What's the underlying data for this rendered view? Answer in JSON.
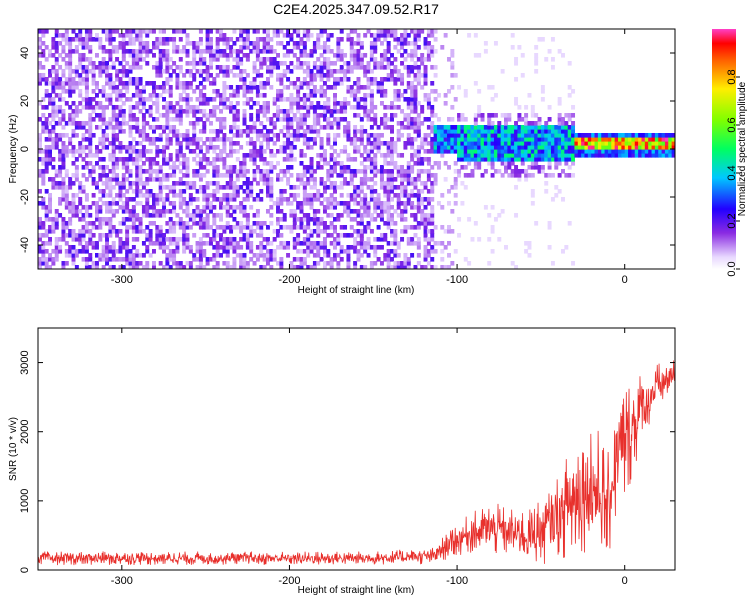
{
  "title": "C2E4.2025.347.09.52.R17",
  "chart_data": [
    {
      "type": "heatmap",
      "name": "spectrogram",
      "xlabel": "Height of straight line (km)",
      "ylabel": "Frequency (Hz)",
      "xlim": [
        -350,
        30
      ],
      "ylim": [
        -50,
        50
      ],
      "xticks": [
        -300,
        -200,
        -100,
        0
      ],
      "yticks": [
        -40,
        -20,
        0,
        20,
        40
      ],
      "description_regions": [
        {
          "x_range": [
            -350,
            -115
          ],
          "freq_range": [
            -50,
            50
          ],
          "amplitude": "low (0.05-0.2), scattered noise"
        },
        {
          "x_range": [
            -115,
            -30
          ],
          "freq_range": [
            -5,
            10
          ],
          "amplitude": "medium (0.3-0.5)"
        },
        {
          "x_range": [
            -30,
            30
          ],
          "freq_range": [
            -2,
            4
          ],
          "amplitude": "high (0.6-1.0), carrier near 0-2 Hz"
        }
      ],
      "colorbar": {
        "label": "Normalized spectral amplitude",
        "range": [
          0,
          1
        ],
        "ticks": [
          "0.0",
          "0.2",
          "0.4",
          "0.6",
          "0.8"
        ],
        "tick_values": [
          0.0,
          0.2,
          0.4,
          0.6,
          0.8
        ]
      }
    },
    {
      "type": "line",
      "name": "snr",
      "xlabel": "Height of straight line (km)",
      "ylabel": "SNR (10 * v/v)",
      "xlim": [
        -350,
        30
      ],
      "ylim": [
        0,
        3500
      ],
      "xticks": [
        -300,
        -200,
        -100,
        0
      ],
      "yticks": [
        0,
        1000,
        2000,
        3000
      ],
      "series": [
        {
          "name": "SNR",
          "color": "#e8302c",
          "x": [
            -350,
            -300,
            -250,
            -200,
            -150,
            -115,
            -100,
            -90,
            -80,
            -70,
            -60,
            -50,
            -40,
            -30,
            -20,
            -15,
            -10,
            -5,
            0,
            5,
            10,
            15,
            20,
            25,
            30
          ],
          "y": [
            170,
            170,
            170,
            170,
            170,
            200,
            450,
            550,
            600,
            550,
            500,
            550,
            800,
            1000,
            1300,
            1100,
            900,
            1600,
            1800,
            2100,
            2300,
            2500,
            2650,
            2750,
            2800
          ],
          "spread": [
            100,
            100,
            100,
            100,
            100,
            120,
            250,
            300,
            400,
            350,
            400,
            500,
            600,
            900,
            1000,
            900,
            800,
            900,
            900,
            700,
            600,
            400,
            350,
            300,
            250
          ]
        }
      ]
    }
  ]
}
